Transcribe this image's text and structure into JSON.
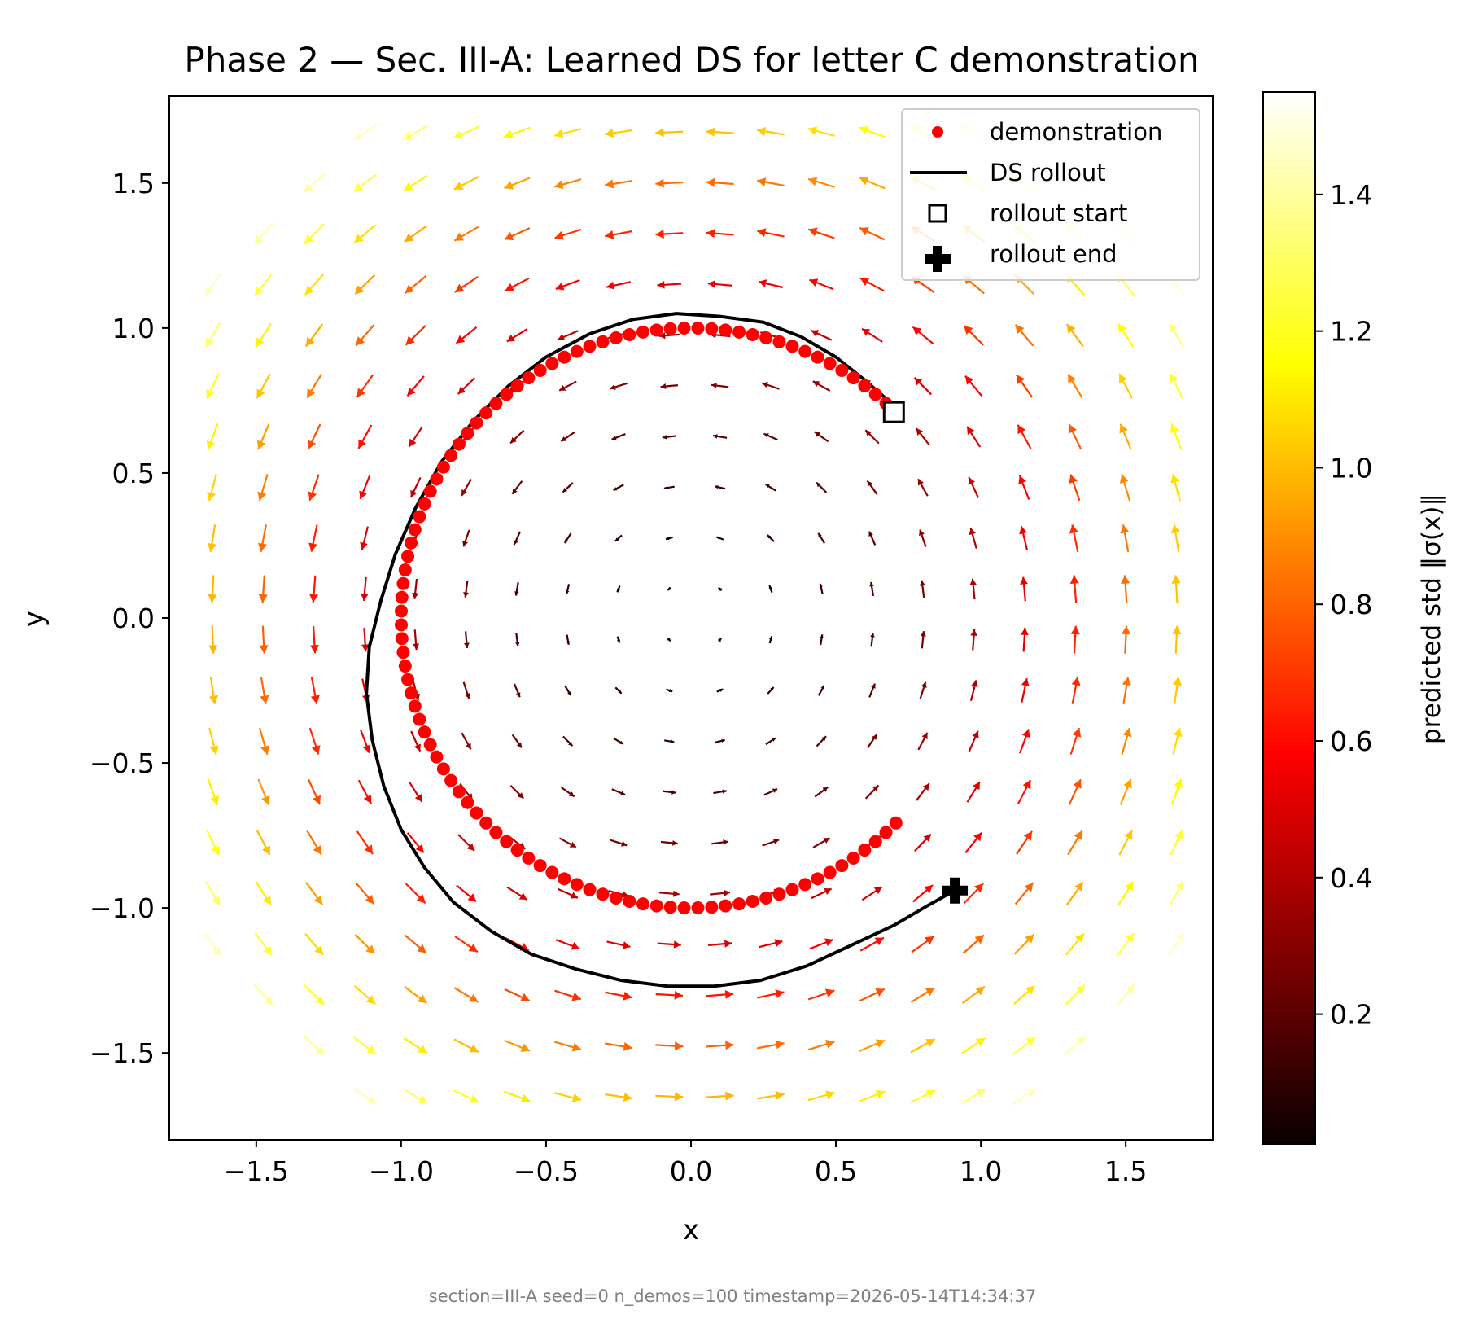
{
  "chart_data": {
    "type": "quiver",
    "title": "Phase 2 — Sec. III-A: Learned DS for letter C demonstration",
    "xlabel": "x",
    "ylabel": "y",
    "xlim": [
      -1.8,
      1.8
    ],
    "ylim": [
      -1.8,
      1.8
    ],
    "x_ticks": [
      -1.5,
      -1.0,
      -0.5,
      0.0,
      0.5,
      1.0,
      1.5
    ],
    "x_tick_labels": [
      "−1.5",
      "−1.0",
      "−0.5",
      "0.0",
      "0.5",
      "1.0",
      "1.5"
    ],
    "y_ticks": [
      -1.5,
      -1.0,
      -0.5,
      0.0,
      0.5,
      1.0,
      1.5
    ],
    "y_tick_labels": [
      "−1.5",
      "−1.0",
      "−0.5",
      "0.0",
      "0.5",
      "1.0",
      "1.5"
    ],
    "grid": false,
    "legend": {
      "placement": "top-right",
      "entries": [
        {
          "label": "demonstration",
          "marker": "red-dot"
        },
        {
          "label": "DS rollout",
          "marker": "black-line"
        },
        {
          "label": "rollout start",
          "marker": "hollow-square"
        },
        {
          "label": "rollout end",
          "marker": "black-plus"
        }
      ]
    },
    "vector_field": {
      "description": "counter-clockwise rotation field colored by predicted std",
      "grid_x": [
        -1.65,
        -1.475,
        -1.3,
        -1.125,
        -0.95,
        -0.775,
        -0.6,
        -0.425,
        -0.25,
        -0.075,
        0.1,
        0.275,
        0.45,
        0.625,
        0.8,
        0.975,
        1.15,
        1.325,
        1.5,
        1.675
      ],
      "grid_y": [
        -1.65,
        -1.475,
        -1.3,
        -1.125,
        -0.95,
        -0.775,
        -0.6,
        -0.425,
        -0.25,
        -0.075,
        0.1,
        0.275,
        0.45,
        0.625,
        0.8,
        0.975,
        1.15,
        1.325,
        1.5,
        1.675
      ]
    },
    "demonstration": {
      "shape": "letter C arc",
      "center": [
        0,
        0
      ],
      "radius": 1.0,
      "start_angle_deg": 45,
      "end_angle_deg": 315,
      "n_points": 100
    },
    "rollout": [
      [
        0.68,
        0.75
      ],
      [
        0.6,
        0.82
      ],
      [
        0.5,
        0.9
      ],
      [
        0.38,
        0.97
      ],
      [
        0.25,
        1.02
      ],
      [
        0.1,
        1.04
      ],
      [
        -0.05,
        1.05
      ],
      [
        -0.2,
        1.03
      ],
      [
        -0.35,
        0.98
      ],
      [
        -0.5,
        0.9
      ],
      [
        -0.63,
        0.8
      ],
      [
        -0.75,
        0.68
      ],
      [
        -0.86,
        0.54
      ],
      [
        -0.95,
        0.38
      ],
      [
        -1.02,
        0.22
      ],
      [
        -1.07,
        0.06
      ],
      [
        -1.11,
        -0.1
      ],
      [
        -1.12,
        -0.26
      ],
      [
        -1.1,
        -0.42
      ],
      [
        -1.06,
        -0.58
      ],
      [
        -1.0,
        -0.73
      ],
      [
        -0.92,
        -0.86
      ],
      [
        -0.82,
        -0.98
      ],
      [
        -0.69,
        -1.08
      ],
      [
        -0.55,
        -1.16
      ],
      [
        -0.4,
        -1.21
      ],
      [
        -0.24,
        -1.25
      ],
      [
        -0.08,
        -1.27
      ],
      [
        0.08,
        -1.27
      ],
      [
        0.24,
        -1.25
      ],
      [
        0.4,
        -1.2
      ],
      [
        0.55,
        -1.13
      ],
      [
        0.7,
        -1.06
      ],
      [
        0.82,
        -0.99
      ],
      [
        0.91,
        -0.94
      ]
    ],
    "rollout_start": [
      0.7,
      0.71
    ],
    "rollout_end": [
      0.91,
      -0.94
    ],
    "colorbar": {
      "label": "predicted std  ‖σ(x)‖",
      "colormap": "hot",
      "range": [
        0.01,
        1.55
      ],
      "ticks": [
        0.2,
        0.4,
        0.6,
        0.8,
        1.0,
        1.2,
        1.4
      ],
      "tick_labels": [
        "0.2",
        "0.4",
        "0.6",
        "0.8",
        "1.0",
        "1.2",
        "1.4"
      ]
    }
  },
  "footer": "section=III-A  seed=0  n_demos=100  timestamp=2026-05-14T14:34:37"
}
